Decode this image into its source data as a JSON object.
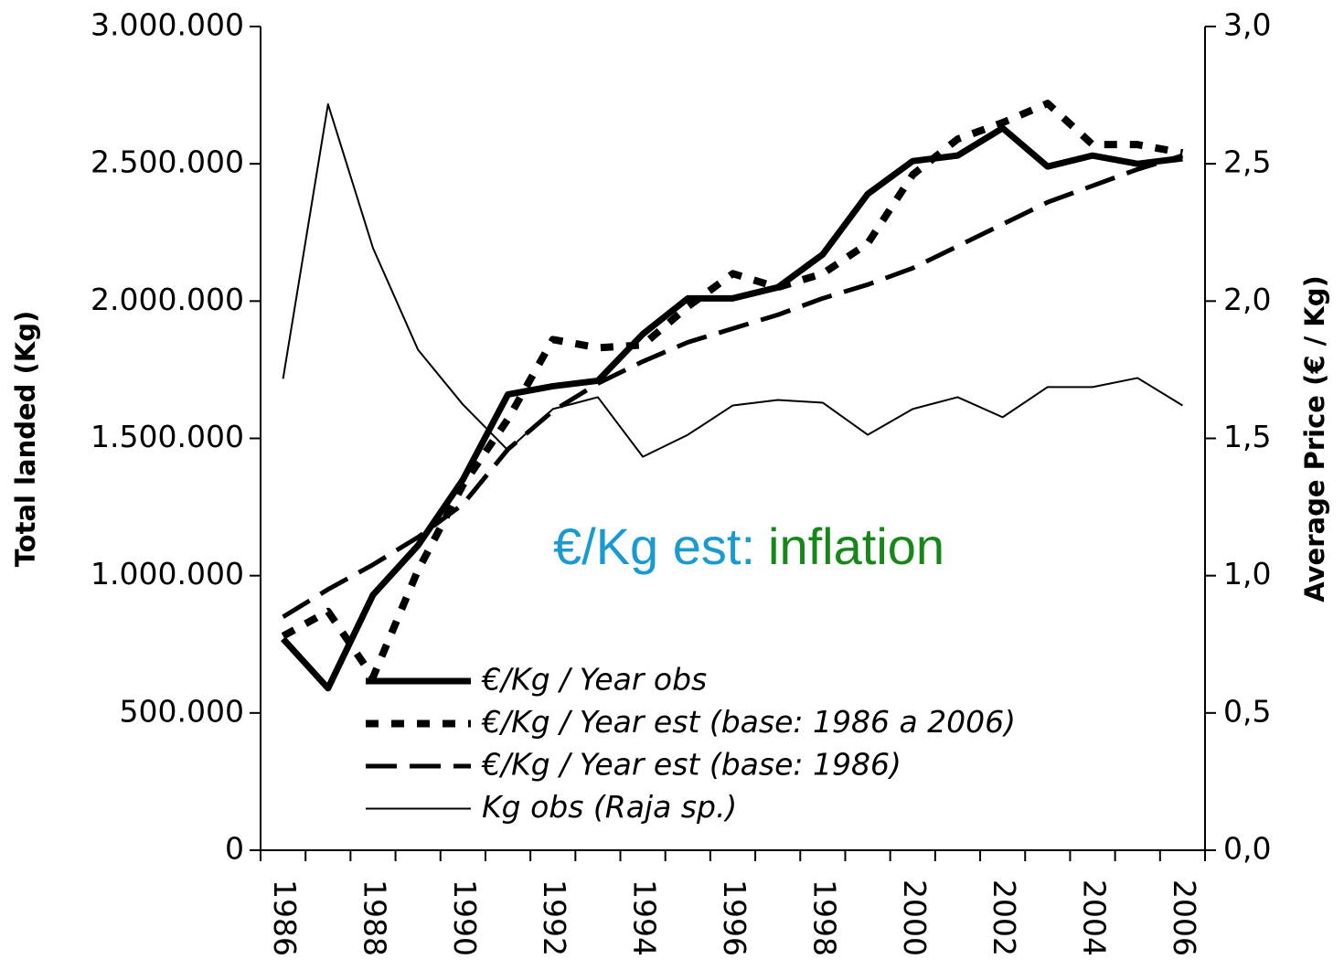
{
  "chart_data": {
    "type": "line",
    "categories": [
      "1986",
      null,
      "1988",
      null,
      "1990",
      null,
      "1992",
      null,
      "1994",
      null,
      "1996",
      null,
      "1998",
      null,
      "2000",
      null,
      "2002",
      null,
      "2004",
      null,
      "2006"
    ],
    "ylabel": "Total landed (Kg)",
    "y2label": "Average Price (€ / Kg)",
    "ylim": [
      0,
      3000000
    ],
    "yticks": [
      0,
      {
        "value": 500000,
        "label": "500.000"
      },
      {
        "value": 1000000,
        "label": "1.000.000"
      },
      {
        "value": 1500000,
        "label": "1.500.000"
      },
      {
        "value": 2000000,
        "label": "2.000.000"
      },
      {
        "value": 2500000,
        "label": "2.500.000"
      },
      {
        "value": 3000000,
        "label": "3.000.000"
      }
    ],
    "y2lim": [
      0,
      3
    ],
    "y2ticks": [
      {
        "value": 0,
        "label": "0,0"
      },
      {
        "value": 0.5,
        "label": "0,5"
      },
      {
        "value": 1,
        "label": "1,0"
      },
      {
        "value": 1.5,
        "label": "1,5"
      },
      {
        "value": 2,
        "label": "2,0"
      },
      {
        "value": 2.5,
        "label": "2,5"
      },
      {
        "value": 3,
        "label": "3,0"
      }
    ],
    "series": [
      {
        "name": "€/Kg / Year obs",
        "color": "#000000",
        "line_style": "solid",
        "line_width": 7,
        "axis": "y2",
        "values": [
          0.77,
          0.59,
          0.93,
          1.11,
          1.35,
          1.66,
          1.69,
          1.71,
          1.88,
          2.01,
          2.01,
          2.05,
          2.17,
          2.39,
          2.51,
          2.53,
          2.63,
          2.49,
          2.53,
          2.5,
          2.52
        ]
      },
      {
        "name": "€/Kg / Year est (base: 1986 a 2006)",
        "color": "#000000",
        "line_style": "dotted",
        "line_width": 8,
        "axis": "y2",
        "values": [
          0.78,
          0.87,
          0.63,
          1.02,
          1.33,
          1.57,
          1.86,
          1.83,
          1.84,
          1.98,
          2.1,
          2.05,
          2.1,
          2.21,
          2.46,
          2.59,
          2.65,
          2.72,
          2.57,
          2.57,
          2.54
        ]
      },
      {
        "name": "€/Kg / Year est (base: 1986)",
        "color": "#000000",
        "line_style": "dashed",
        "line_width": 5,
        "axis": "y2",
        "values": [
          0.85,
          0.95,
          1.04,
          1.14,
          1.26,
          1.46,
          1.6,
          1.7,
          1.78,
          1.85,
          1.9,
          1.95,
          2.01,
          2.06,
          2.12,
          2.2,
          2.28,
          2.36,
          2.42,
          2.48,
          2.53
        ]
      },
      {
        "name": "Kg obs (Raja sp.)",
        "color": "#000000",
        "line_style": "solid",
        "line_width": 2,
        "values": [
          1717000,
          2717000,
          2193000,
          1823000,
          1623000,
          1457000,
          1607000,
          1650000,
          1433000,
          1513000,
          1620000,
          1640000,
          1630000,
          1513000,
          1607000,
          1650000,
          1577000,
          1687000,
          1687000,
          1720000,
          1620000
        ]
      }
    ],
    "annotations": [
      {
        "text": "€/Kg est:",
        "color": "#1a9ad0"
      },
      {
        "text": "inflation",
        "color": "#17871a"
      }
    ]
  }
}
